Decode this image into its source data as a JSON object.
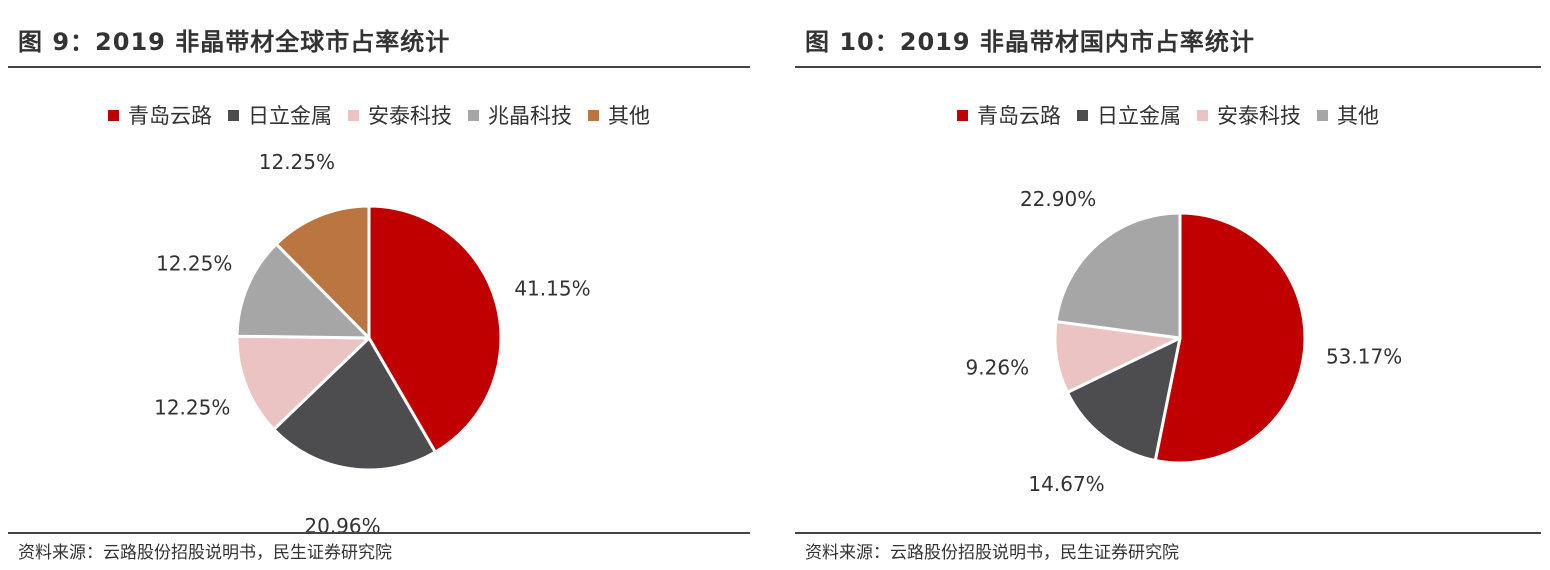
{
  "chart_data": [
    {
      "type": "pie",
      "title": "图 9：2019 非晶带材全球市占率统计",
      "categories": [
        "青岛云路",
        "日立金属",
        "安泰科技",
        "兆晶科技",
        "其他"
      ],
      "values": [
        41.15,
        20.96,
        12.25,
        12.25,
        12.25
      ],
      "labels": [
        "41.15%",
        "20.96%",
        "12.25%",
        "12.25%",
        "12.25%"
      ],
      "colors": [
        "#C00000",
        "#4D4D4F",
        "#EBC3C3",
        "#A6A6A6",
        "#BA7540"
      ],
      "legend_position": "top",
      "source": "资料来源：云路股份招股说明书，民生证券研究院"
    },
    {
      "type": "pie",
      "title": "图 10：2019 非晶带材国内市占率统计",
      "categories": [
        "青岛云路",
        "日立金属",
        "安泰科技",
        "其他"
      ],
      "values": [
        53.17,
        14.67,
        9.26,
        22.9
      ],
      "labels": [
        "53.17%",
        "14.67%",
        "9.26%",
        "22.90%"
      ],
      "colors": [
        "#C00000",
        "#4D4D4F",
        "#EBC3C3",
        "#A6A6A6"
      ],
      "legend_position": "top",
      "source": "资料来源：云路股份招股说明书，民生证券研究院"
    }
  ]
}
